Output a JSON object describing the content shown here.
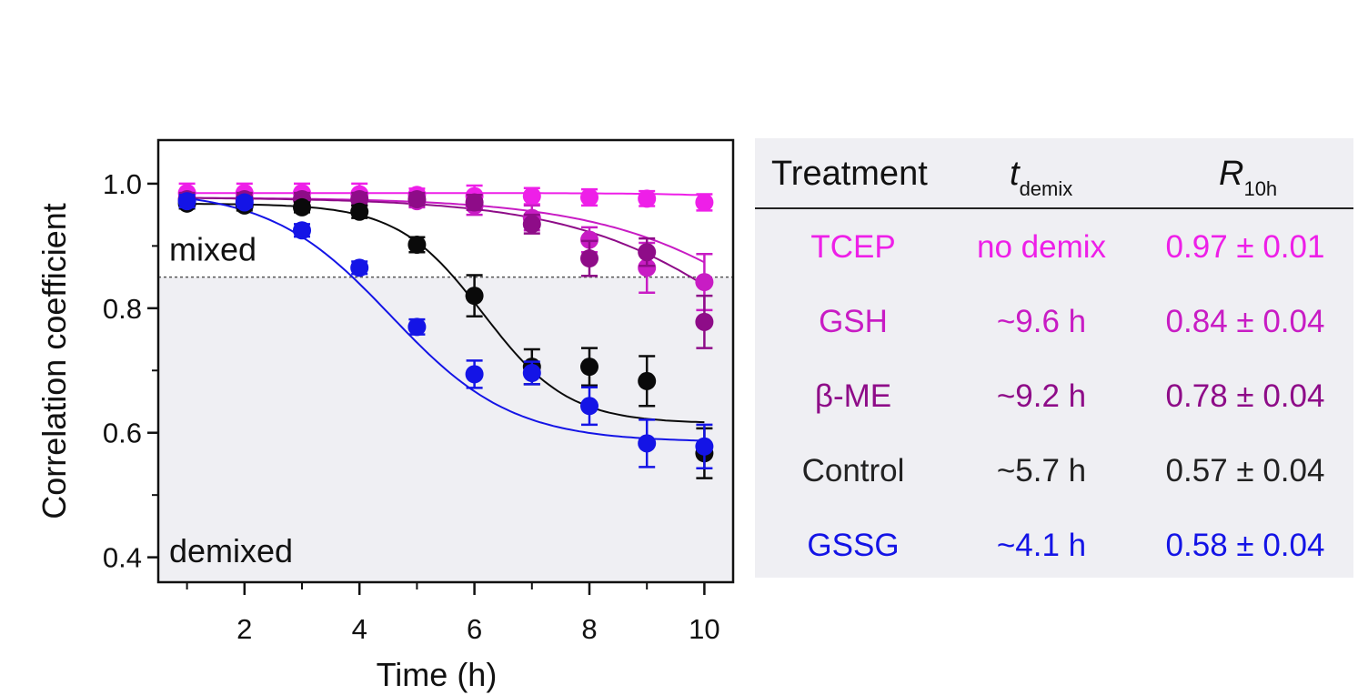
{
  "chart_data": {
    "type": "scatter",
    "xlabel": "Time (h)",
    "ylabel": "Correlation coefficient",
    "xlim": [
      0.5,
      10.5
    ],
    "ylim": [
      0.36,
      1.07
    ],
    "x_ticks": [
      2,
      4,
      6,
      8,
      10
    ],
    "y_ticks": [
      0.4,
      0.6,
      0.8,
      1.0
    ],
    "x_tick_labels": [
      "2",
      "4",
      "6",
      "8",
      "10"
    ],
    "y_tick_labels": [
      "0.4",
      "0.6",
      "0.8",
      "1.0"
    ],
    "threshold": 0.85,
    "region_labels": {
      "above": "mixed",
      "below": "demixed"
    },
    "series": [
      {
        "name": "TCEP",
        "color": "#ee1fe8",
        "x": [
          1,
          2,
          3,
          4,
          5,
          6,
          7,
          8,
          9,
          10
        ],
        "y": [
          0.985,
          0.985,
          0.985,
          0.983,
          0.982,
          0.98,
          0.98,
          0.978,
          0.976,
          0.97
        ],
        "err": [
          0.015,
          0.015,
          0.015,
          0.017,
          0.01,
          0.017,
          0.013,
          0.013,
          0.012,
          0.013
        ],
        "fit": {
          "top": 0.985,
          "bottom": 0.955,
          "t50": 12,
          "k": 1.0
        }
      },
      {
        "name": "GSH",
        "color": "#c81cc4",
        "x": [
          1,
          2,
          3,
          4,
          5,
          6,
          7,
          8,
          9,
          10
        ],
        "y": [
          0.975,
          0.975,
          0.975,
          0.975,
          0.972,
          0.965,
          0.945,
          0.91,
          0.865,
          0.842
        ],
        "err": [
          0.01,
          0.01,
          0.01,
          0.01,
          0.01,
          0.015,
          0.02,
          0.02,
          0.04,
          0.045
        ],
        "fit": {
          "top": 0.978,
          "bottom": 0.5,
          "t50": 12.2,
          "k": 0.58
        }
      },
      {
        "name": "β-ME",
        "color": "#8e0c88",
        "x": [
          1,
          2,
          3,
          4,
          5,
          6,
          7,
          8,
          9,
          10
        ],
        "y": [
          0.975,
          0.975,
          0.975,
          0.975,
          0.975,
          0.97,
          0.935,
          0.88,
          0.89,
          0.778
        ],
        "err": [
          0.01,
          0.01,
          0.01,
          0.01,
          0.01,
          0.012,
          0.015,
          0.028,
          0.022,
          0.042
        ],
        "fit": {
          "top": 0.978,
          "bottom": 0.5,
          "t50": 11.5,
          "k": 0.58
        }
      },
      {
        "name": "Control",
        "color": "#0a0a0a",
        "x": [
          1,
          2,
          3,
          4,
          5,
          6,
          7,
          8,
          9,
          10
        ],
        "y": [
          0.968,
          0.965,
          0.962,
          0.955,
          0.902,
          0.82,
          0.706,
          0.706,
          0.683,
          0.567
        ],
        "err": [
          0.008,
          0.008,
          0.008,
          0.01,
          0.012,
          0.033,
          0.028,
          0.03,
          0.04,
          0.04
        ],
        "fit": {
          "top": 0.968,
          "bottom": 0.615,
          "t50": 6.15,
          "k": 1.35
        }
      },
      {
        "name": "GSSG",
        "color": "#1414e6",
        "x": [
          1,
          2,
          3,
          4,
          5,
          6,
          7,
          8,
          9,
          10
        ],
        "y": [
          0.972,
          0.97,
          0.925,
          0.865,
          0.77,
          0.694,
          0.696,
          0.643,
          0.583,
          0.578
        ],
        "err": [
          0.01,
          0.008,
          0.01,
          0.01,
          0.012,
          0.022,
          0.018,
          0.03,
          0.038,
          0.035
        ],
        "fit": {
          "top": 0.99,
          "bottom": 0.585,
          "t50": 4.55,
          "k": 0.95
        }
      }
    ]
  },
  "table": {
    "headers": {
      "treatment": "Treatment",
      "t_main": "t",
      "t_sub": "demix",
      "r_main": "R",
      "r_sub": "10h"
    },
    "rows": [
      {
        "treatment": "TCEP",
        "t_demix": "no demix",
        "r10h": "0.97 ± 0.01",
        "color": "#ee1fe8"
      },
      {
        "treatment": "GSH",
        "t_demix": "~9.6 h",
        "r10h": "0.84 ± 0.04",
        "color": "#c81cc4"
      },
      {
        "treatment": "β-ME",
        "t_demix": "~9.2 h",
        "r10h": "0.78 ± 0.04",
        "color": "#8e0c88"
      },
      {
        "treatment": "Control",
        "t_demix": "~5.7 h",
        "r10h": "0.57 ± 0.04",
        "color": "#222222"
      },
      {
        "treatment": "GSSG",
        "t_demix": "~4.1 h",
        "r10h": "0.58 ± 0.04",
        "color": "#1414e6"
      }
    ]
  }
}
